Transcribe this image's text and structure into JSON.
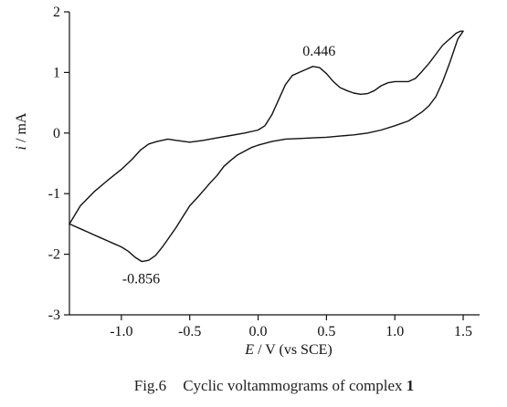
{
  "chart_data": {
    "type": "line",
    "xlabel": {
      "var": "E",
      "rest": " / V (vs SCE)"
    },
    "ylabel": {
      "var": "i",
      "rest": " / mA"
    },
    "xlim": [
      -1.38,
      1.62
    ],
    "ylim": [
      -3,
      2
    ],
    "xticks": [
      -1.0,
      -0.5,
      0.0,
      0.5,
      1.0,
      1.5
    ],
    "xtick_labels": [
      "-1.0",
      "-0.5",
      "0.0",
      "0.5",
      "1.0",
      "1.5"
    ],
    "yticks": [
      -3,
      -2,
      -1,
      0,
      1,
      2
    ],
    "ytick_labels": [
      "-3",
      "-2",
      "-1",
      "0",
      "1",
      "2"
    ],
    "grid": false,
    "line_color": "#111111",
    "annotations": [
      {
        "text": "0.446",
        "x": 0.446,
        "y": 1.1
      },
      {
        "text": "-0.856",
        "x": -0.856,
        "y": -2.12
      }
    ],
    "series": [
      {
        "x": [
          -1.38,
          -1.3,
          -1.2,
          -1.1,
          -1.0,
          -0.92,
          -0.86,
          -0.8,
          -0.74,
          -0.66,
          -0.6,
          -0.5,
          -0.4,
          -0.3,
          -0.2,
          -0.1,
          0.0,
          0.05,
          0.1,
          0.15,
          0.2,
          0.25,
          0.3,
          0.35,
          0.4,
          0.45,
          0.5,
          0.55,
          0.6,
          0.65,
          0.7,
          0.75,
          0.8,
          0.85,
          0.9,
          0.95,
          1.0,
          1.05,
          1.1,
          1.15,
          1.2,
          1.25,
          1.3,
          1.35,
          1.4,
          1.45,
          1.48,
          1.5
        ],
        "y": [
          -1.5,
          -1.2,
          -0.97,
          -0.78,
          -0.6,
          -0.43,
          -0.28,
          -0.18,
          -0.14,
          -0.1,
          -0.12,
          -0.15,
          -0.12,
          -0.08,
          -0.04,
          0.0,
          0.05,
          0.12,
          0.3,
          0.55,
          0.8,
          0.95,
          1.0,
          1.05,
          1.1,
          1.08,
          0.98,
          0.85,
          0.75,
          0.7,
          0.66,
          0.64,
          0.65,
          0.7,
          0.78,
          0.83,
          0.85,
          0.85,
          0.85,
          0.9,
          1.02,
          1.15,
          1.3,
          1.45,
          1.55,
          1.65,
          1.68,
          1.68
        ]
      },
      {
        "x": [
          1.5,
          1.46,
          1.4,
          1.35,
          1.3,
          1.25,
          1.2,
          1.1,
          1.0,
          0.9,
          0.8,
          0.7,
          0.6,
          0.5,
          0.4,
          0.3,
          0.2,
          0.1,
          0.0,
          -0.05,
          -0.1,
          -0.15,
          -0.2,
          -0.25,
          -0.3,
          -0.35,
          -0.4,
          -0.45,
          -0.5,
          -0.55,
          -0.6,
          -0.65,
          -0.7,
          -0.75,
          -0.8,
          -0.85,
          -0.9,
          -0.95,
          -1.0,
          -1.05,
          -1.1,
          -1.15,
          -1.2,
          -1.25,
          -1.3,
          -1.38
        ],
        "y": [
          1.68,
          1.55,
          1.15,
          0.85,
          0.6,
          0.45,
          0.35,
          0.2,
          0.12,
          0.05,
          0.0,
          -0.03,
          -0.05,
          -0.07,
          -0.08,
          -0.09,
          -0.1,
          -0.14,
          -0.2,
          -0.24,
          -0.3,
          -0.36,
          -0.45,
          -0.55,
          -0.7,
          -0.82,
          -0.95,
          -1.08,
          -1.2,
          -1.38,
          -1.56,
          -1.72,
          -1.88,
          -2.02,
          -2.1,
          -2.12,
          -2.05,
          -1.95,
          -1.88,
          -1.83,
          -1.78,
          -1.73,
          -1.68,
          -1.63,
          -1.58,
          -1.5
        ]
      }
    ]
  },
  "caption": {
    "prefix": "Fig.6",
    "text": "Cyclic voltammograms of complex ",
    "bold": "1"
  }
}
